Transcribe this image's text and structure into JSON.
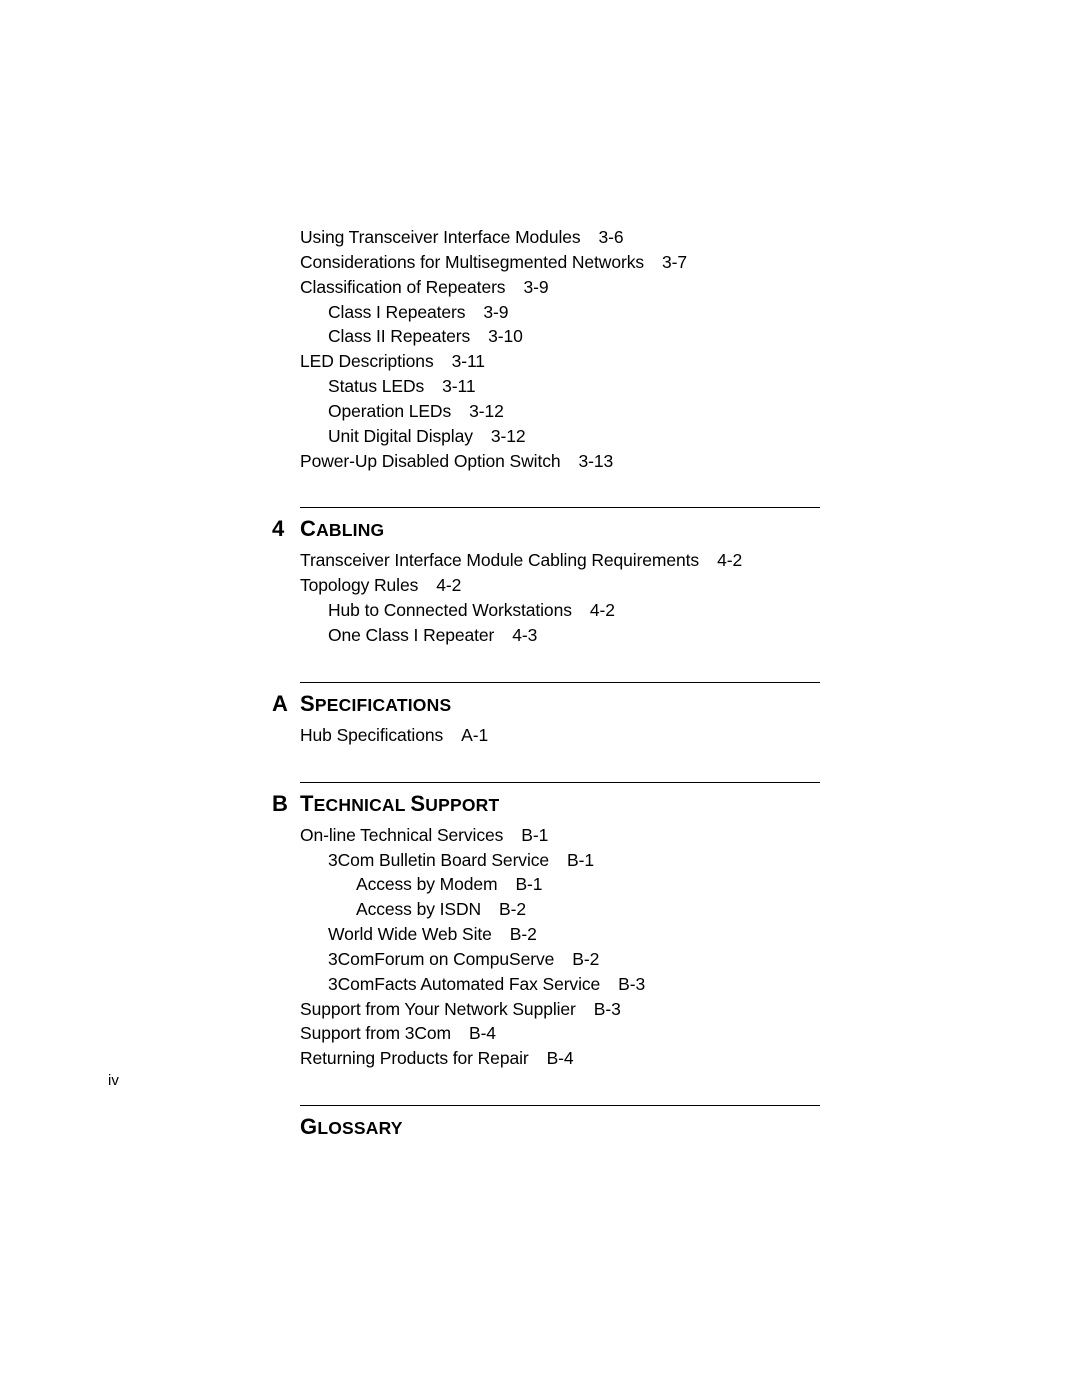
{
  "colors": {
    "background": "#ffffff",
    "text": "#000000",
    "rule": "#000000"
  },
  "typography": {
    "body_fontsize_pt": 13,
    "heading_fontsize_pt": 16,
    "font_family": "Arial, Helvetica, sans-serif"
  },
  "page_number": "iv",
  "continuation_entries": [
    {
      "indent": 0,
      "text": "Using Transceiver Interface Modules",
      "page": "3-6"
    },
    {
      "indent": 0,
      "text": "Considerations for Multisegmented Networks",
      "page": "3-7"
    },
    {
      "indent": 0,
      "text": "Classification of Repeaters",
      "page": "3-9"
    },
    {
      "indent": 1,
      "text": "Class I Repeaters",
      "page": "3-9"
    },
    {
      "indent": 1,
      "text": "Class II Repeaters",
      "page": "3-10"
    },
    {
      "indent": 0,
      "text": "LED Descriptions",
      "page": "3-11"
    },
    {
      "indent": 1,
      "text": "Status LEDs",
      "page": "3-11"
    },
    {
      "indent": 1,
      "text": "Operation LEDs",
      "page": "3-12"
    },
    {
      "indent": 1,
      "text": "Unit Digital Display",
      "page": "3-12"
    },
    {
      "indent": 0,
      "text": "Power-Up Disabled Option Switch",
      "page": "3-13"
    }
  ],
  "sections": [
    {
      "number": "4",
      "title_first": "C",
      "title_rest": "ABLING",
      "entries": [
        {
          "indent": 0,
          "text": "Transceiver Interface Module Cabling Requirements",
          "page": "4-2"
        },
        {
          "indent": 0,
          "text": "Topology Rules",
          "page": "4-2"
        },
        {
          "indent": 1,
          "text": "Hub to Connected Workstations",
          "page": "4-2"
        },
        {
          "indent": 1,
          "text": "One Class I Repeater",
          "page": "4-3"
        }
      ]
    },
    {
      "number": "A",
      "title_first": "S",
      "title_rest": "PECIFICATIONS",
      "entries": [
        {
          "indent": 0,
          "text": "Hub Specifications",
          "page": "A-1"
        }
      ]
    },
    {
      "number": "B",
      "title_first": "T",
      "title_rest": "ECHNICAL ",
      "title_first2": "S",
      "title_rest2": "UPPORT",
      "entries": [
        {
          "indent": 0,
          "text": "On-line Technical Services",
          "page": "B-1"
        },
        {
          "indent": 1,
          "text": "3Com Bulletin Board Service",
          "page": "B-1"
        },
        {
          "indent": 2,
          "text": "Access by Modem",
          "page": "B-1"
        },
        {
          "indent": 2,
          "text": "Access by ISDN",
          "page": "B-2"
        },
        {
          "indent": 1,
          "text": "World Wide Web Site",
          "page": "B-2"
        },
        {
          "indent": 1,
          "text": "3ComForum on CompuServe",
          "page": "B-2"
        },
        {
          "indent": 1,
          "text": "3ComFacts Automated Fax Service",
          "page": "B-3"
        },
        {
          "indent": 0,
          "text": "Support from Your Network Supplier",
          "page": "B-3"
        },
        {
          "indent": 0,
          "text": "Support from 3Com",
          "page": "B-4"
        },
        {
          "indent": 0,
          "text": "Returning Products for Repair",
          "page": "B-4"
        }
      ]
    },
    {
      "number": "",
      "title_first": "G",
      "title_rest": "LOSSARY",
      "entries": []
    }
  ]
}
